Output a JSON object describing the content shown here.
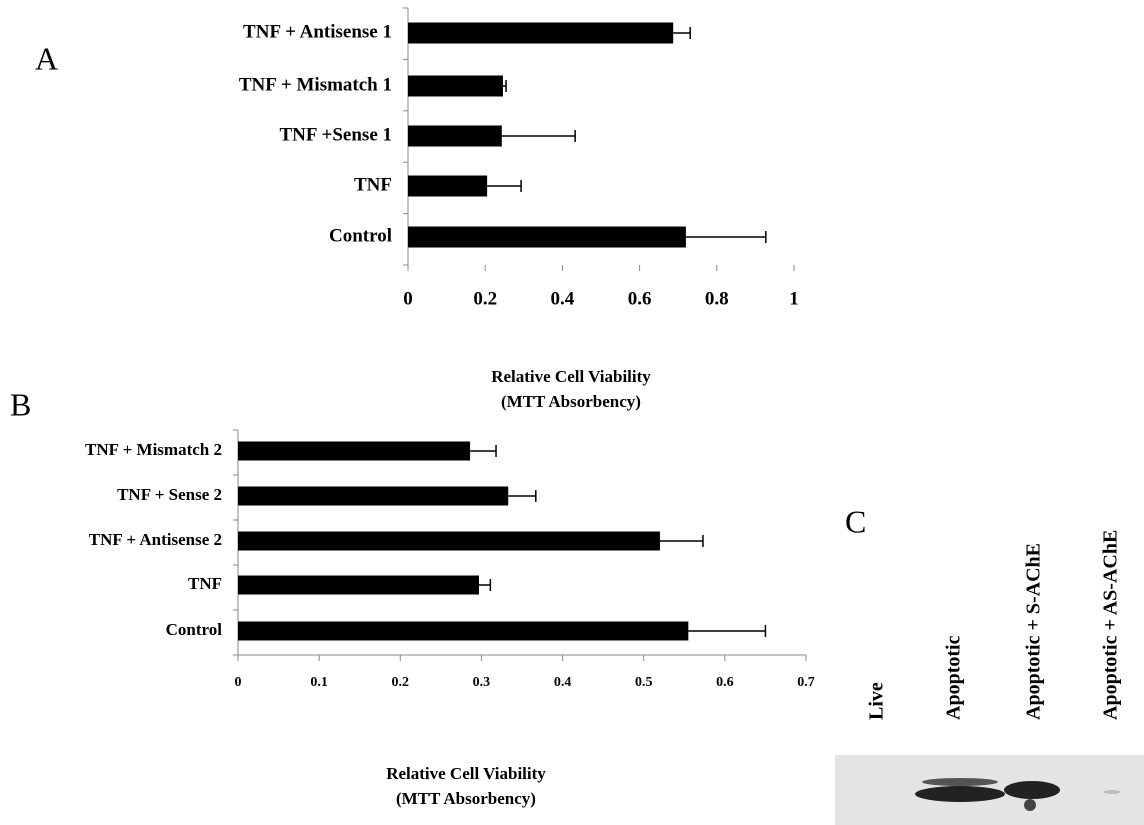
{
  "chart_data": [
    {
      "type": "barh",
      "panel_label": "A",
      "categories": [
        "TNF + Antisense 1",
        "TNF + Mismatch 1",
        "TNF +Sense 1",
        "TNF",
        "Control"
      ],
      "values": [
        0.687,
        0.246,
        0.243,
        0.205,
        0.72
      ],
      "errors": [
        0.044,
        0.008,
        0.19,
        0.088,
        0.207
      ],
      "color": "#000000",
      "xlim": [
        0,
        1
      ],
      "xticks": [
        0,
        0.2,
        0.4,
        0.6,
        0.8,
        1
      ],
      "xlabel": [
        "Relative Cell Viability",
        "(MTT Absorbency)"
      ]
    },
    {
      "type": "barh",
      "panel_label": "B",
      "categories": [
        "TNF + Mismatch 2",
        "TNF + Sense 2",
        "TNF + Antisense 2",
        "TNF",
        "Control"
      ],
      "values": [
        0.286,
        0.333,
        0.52,
        0.297,
        0.555
      ],
      "errors": [
        0.032,
        0.034,
        0.053,
        0.014,
        0.095
      ],
      "color": "#000000",
      "xlim": [
        0,
        0.7
      ],
      "xticks": [
        0,
        0.1,
        0.2,
        0.3,
        0.4,
        0.5,
        0.6,
        0.7
      ],
      "xlabel": [
        "Relative Cell Viability",
        "(MTT Absorbency)"
      ]
    }
  ],
  "blot": {
    "panel_label": "C",
    "lanes": [
      "Live",
      "Apoptotic",
      "Apoptotic + S-AChE",
      "Apoptotic + AS-AChE"
    ]
  }
}
